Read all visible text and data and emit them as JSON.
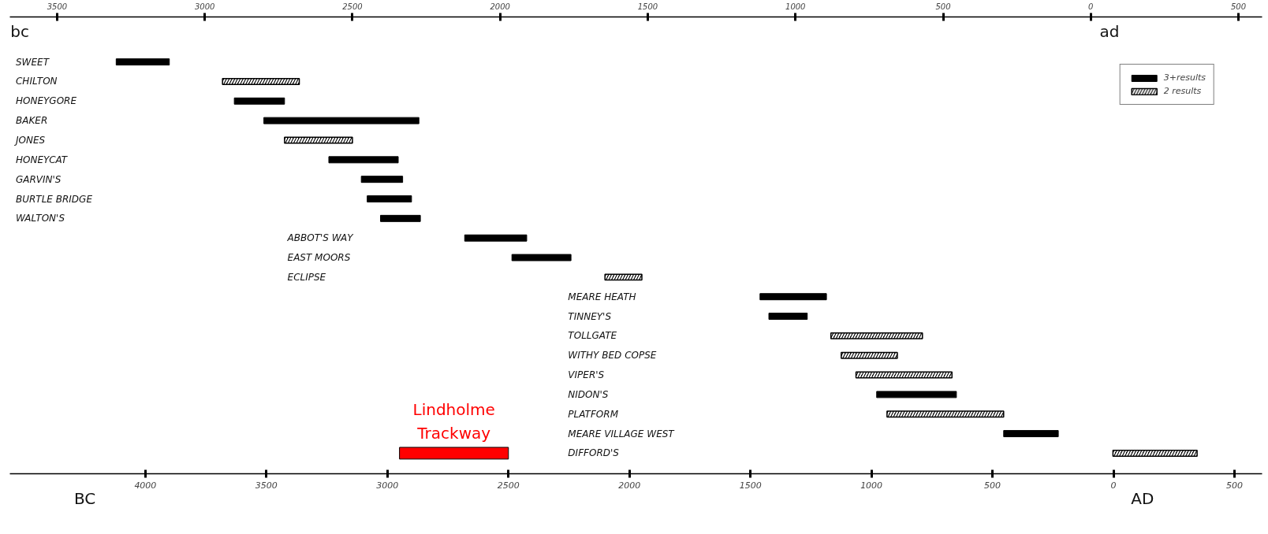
{
  "chart_data": {
    "type": "bar",
    "orientation": "horizontal",
    "categories": [
      "SWEET",
      "CHILTON",
      "HONEYGORE",
      "BAKER",
      "JONES",
      "HONEYCAT",
      "GARVIN'S",
      "BURTLE BRIDGE",
      "WALTON'S",
      "ABBOT'S WAY",
      "EAST MOORS",
      "ECLIPSE",
      "MEARE HEATH",
      "TINNEY'S",
      "TOLLGATE",
      "WITHY BED COPSE",
      "VIPER'S",
      "NIDON'S",
      "PLATFORM",
      "MEARE VILLAGE WEST",
      "DIFFORD'S"
    ],
    "series": [
      {
        "name": "3+results",
        "color": "#000000",
        "base": [
          -3300,
          null,
          -2900,
          -2800,
          null,
          -2580,
          -2470,
          -2450,
          -2405,
          -2120,
          -1960,
          null,
          -1120,
          -1090,
          null,
          null,
          null,
          -725,
          null,
          -295,
          null
        ],
        "values": [
          180,
          null,
          170,
          525,
          null,
          235,
          140,
          150,
          135,
          210,
          200,
          null,
          225,
          130,
          null,
          null,
          null,
          270,
          null,
          185,
          null
        ]
      },
      {
        "name": "2 results",
        "color": "#000000",
        "base": [
          null,
          -2940,
          null,
          null,
          -2730,
          null,
          null,
          null,
          null,
          null,
          null,
          -1645,
          null,
          null,
          -880,
          -845,
          -795,
          null,
          -690,
          null,
          75
        ],
        "values": [
          null,
          260,
          null,
          null,
          230,
          null,
          null,
          null,
          null,
          null,
          null,
          125,
          null,
          null,
          310,
          190,
          325,
          null,
          395,
          null,
          285
        ]
      },
      {
        "name": "Lindholme\nTrackway",
        "color": "#ff0000",
        "axis": "x2",
        "base": [
          null,
          null,
          null,
          null,
          null,
          null,
          null,
          null,
          null,
          null,
          null,
          null,
          null,
          null,
          null,
          null,
          null,
          null,
          null,
          null,
          -2950
        ],
        "values": [
          null,
          null,
          null,
          null,
          null,
          null,
          null,
          null,
          null,
          null,
          null,
          null,
          null,
          null,
          null,
          null,
          null,
          null,
          null,
          null,
          450
        ]
      }
    ],
    "xlim": [
      -3660,
      580
    ],
    "xticks": [
      {
        "value": -3500,
        "label": "3500"
      },
      {
        "value": -3000,
        "label": "3000"
      },
      {
        "value": -2500,
        "label": "2500"
      },
      {
        "value": -2000,
        "label": "2000"
      },
      {
        "value": -1500,
        "label": "1500"
      },
      {
        "value": -1000,
        "label": "1000"
      },
      {
        "value": -500,
        "label": "500"
      },
      {
        "value": 0,
        "label": "0"
      },
      {
        "value": 500,
        "label": "500"
      }
    ],
    "x2lim": [
      -4560,
      614
    ],
    "x2ticks": [
      {
        "value": -4000,
        "label": "4000"
      },
      {
        "value": -3500,
        "label": "3500"
      },
      {
        "value": -3000,
        "label": "3000"
      },
      {
        "value": -2500,
        "label": "2500"
      },
      {
        "value": -2000,
        "label": "2000"
      },
      {
        "value": -1500,
        "label": "1500"
      },
      {
        "value": -1000,
        "label": "1000"
      },
      {
        "value": -500,
        "label": "500"
      },
      {
        "value": 0,
        "label": "0"
      },
      {
        "value": 500,
        "label": "500"
      }
    ],
    "annotations": [
      "bc",
      "ad",
      "BC",
      "AD"
    ],
    "legend": "top right",
    "grid": false
  }
}
